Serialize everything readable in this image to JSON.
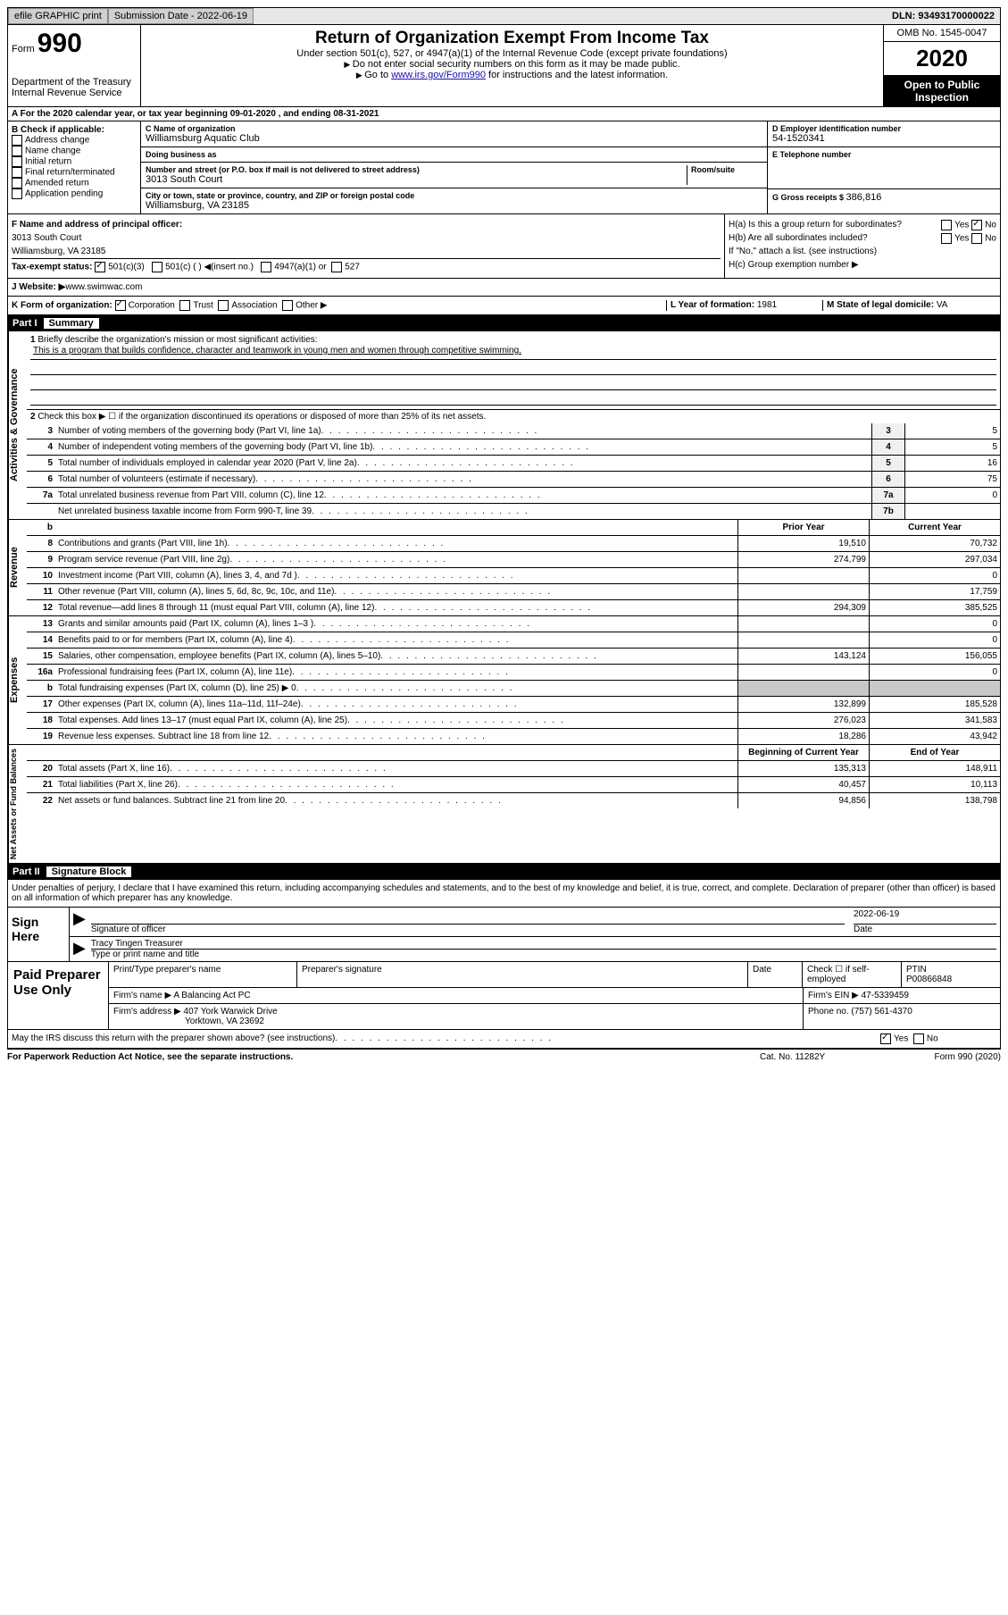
{
  "topbar": {
    "efile": "efile GRAPHIC print",
    "sub_label": "Submission Date - 2022-06-19",
    "dln": "DLN: 93493170000022"
  },
  "header": {
    "form_word": "Form",
    "form_num": "990",
    "dept1": "Department of the Treasury",
    "dept2": "Internal Revenue Service",
    "title": "Return of Organization Exempt From Income Tax",
    "subtitle": "Under section 501(c), 527, or 4947(a)(1) of the Internal Revenue Code (except private foundations)",
    "note1": "Do not enter social security numbers on this form as it may be made public.",
    "note2_pre": "Go to ",
    "note2_link": "www.irs.gov/Form990",
    "note2_post": " for instructions and the latest information.",
    "omb": "OMB No. 1545-0047",
    "year": "2020",
    "open": "Open to Public Inspection"
  },
  "row_a": "A For the 2020 calendar year, or tax year beginning 09-01-2020    , and ending 08-31-2021",
  "col_b": {
    "title": "B Check if applicable:",
    "opts": [
      "Address change",
      "Name change",
      "Initial return",
      "Final return/terminated",
      "Amended return",
      "Application pending"
    ]
  },
  "col_c": {
    "name_label": "C Name of organization",
    "name": "Williamsburg Aquatic Club",
    "dba_label": "Doing business as",
    "dba": "",
    "street_label": "Number and street (or P.O. box if mail is not delivered to street address)",
    "room_label": "Room/suite",
    "street": "3013 South Court",
    "city_label": "City or town, state or province, country, and ZIP or foreign postal code",
    "city": "Williamsburg, VA  23185"
  },
  "col_d": {
    "ein_label": "D Employer identification number",
    "ein": "54-1520341",
    "phone_label": "E Telephone number",
    "phone": "",
    "gross_label": "G Gross receipts $ ",
    "gross": "386,816"
  },
  "fhi": {
    "f_label": "F  Name and address of principal officer:",
    "f_name": "",
    "f_addr1": "3013 South Court",
    "f_addr2": "Williamsburg, VA  23185",
    "i_label": "Tax-exempt status:",
    "i_501c3": "501(c)(3)",
    "i_501c": "501(c) (  ) ◀(insert no.)",
    "i_4947": "4947(a)(1) or",
    "i_527": "527",
    "ha_label": "H(a)  Is this a group return for subordinates?",
    "hb_label": "H(b)  Are all subordinates included?",
    "hb_note": "If \"No,\" attach a list. (see instructions)",
    "hc_label": "H(c)  Group exemption number ▶",
    "yes": "Yes",
    "no": "No"
  },
  "row_j": {
    "label": "J Website: ▶  ",
    "value": "www.swimwac.com"
  },
  "row_k": {
    "l": "K Form of organization:",
    "opts": [
      "Corporation",
      "Trust",
      "Association",
      "Other ▶"
    ],
    "m_label": "L Year of formation: ",
    "m_val": "1981",
    "n_label": "M State of legal domicile: ",
    "n_val": "VA"
  },
  "part1": {
    "num": "Part I",
    "title": "Summary"
  },
  "activities": {
    "vlabel": "Activities & Governance",
    "q1_label": "Briefly describe the organization's mission or most significant activities:",
    "q1_text": "This is a program that builds confidence, character and teamwork in young men and women through competitive swimming.",
    "q2": "Check this box ▶ ☐  if the organization discontinued its operations or disposed of more than 25% of its net assets.",
    "rows": [
      {
        "n": "3",
        "t": "Number of voting members of the governing body (Part VI, line 1a)",
        "box": "3",
        "v": "5"
      },
      {
        "n": "4",
        "t": "Number of independent voting members of the governing body (Part VI, line 1b)",
        "box": "4",
        "v": "5"
      },
      {
        "n": "5",
        "t": "Total number of individuals employed in calendar year 2020 (Part V, line 2a)",
        "box": "5",
        "v": "16"
      },
      {
        "n": "6",
        "t": "Total number of volunteers (estimate if necessary)",
        "box": "6",
        "v": "75"
      },
      {
        "n": "7a",
        "t": "Total unrelated business revenue from Part VIII, column (C), line 12",
        "box": "7a",
        "v": "0"
      },
      {
        "n": "",
        "t": "Net unrelated business taxable income from Form 990-T, line 39",
        "box": "7b",
        "v": ""
      }
    ]
  },
  "revenue": {
    "vlabel": "Revenue",
    "hdr_b": "b",
    "hdr_prior": "Prior Year",
    "hdr_curr": "Current Year",
    "rows": [
      {
        "n": "8",
        "t": "Contributions and grants (Part VIII, line 1h)",
        "p": "19,510",
        "c": "70,732"
      },
      {
        "n": "9",
        "t": "Program service revenue (Part VIII, line 2g)",
        "p": "274,799",
        "c": "297,034"
      },
      {
        "n": "10",
        "t": "Investment income (Part VIII, column (A), lines 3, 4, and 7d )",
        "p": "",
        "c": "0"
      },
      {
        "n": "11",
        "t": "Other revenue (Part VIII, column (A), lines 5, 6d, 8c, 9c, 10c, and 11e)",
        "p": "",
        "c": "17,759"
      },
      {
        "n": "12",
        "t": "Total revenue—add lines 8 through 11 (must equal Part VIII, column (A), line 12)",
        "p": "294,309",
        "c": "385,525"
      }
    ]
  },
  "expenses": {
    "vlabel": "Expenses",
    "rows": [
      {
        "n": "13",
        "t": "Grants and similar amounts paid (Part IX, column (A), lines 1–3 )",
        "p": "",
        "c": "0"
      },
      {
        "n": "14",
        "t": "Benefits paid to or for members (Part IX, column (A), line 4)",
        "p": "",
        "c": "0"
      },
      {
        "n": "15",
        "t": "Salaries, other compensation, employee benefits (Part IX, column (A), lines 5–10)",
        "p": "143,124",
        "c": "156,055"
      },
      {
        "n": "16a",
        "t": "Professional fundraising fees (Part IX, column (A), line 11e)",
        "p": "",
        "c": "0"
      },
      {
        "n": "b",
        "t": "Total fundraising expenses (Part IX, column (D), line 25) ▶ 0",
        "p": "__shade__",
        "c": "__shade__"
      },
      {
        "n": "17",
        "t": "Other expenses (Part IX, column (A), lines 11a–11d, 11f–24e)",
        "p": "132,899",
        "c": "185,528"
      },
      {
        "n": "18",
        "t": "Total expenses. Add lines 13–17 (must equal Part IX, column (A), line 25)",
        "p": "276,023",
        "c": "341,583"
      },
      {
        "n": "19",
        "t": "Revenue less expenses. Subtract line 18 from line 12",
        "p": "18,286",
        "c": "43,942"
      }
    ]
  },
  "netassets": {
    "vlabel": "Net Assets or Fund Balances",
    "hdr_begin": "Beginning of Current Year",
    "hdr_end": "End of Year",
    "rows": [
      {
        "n": "20",
        "t": "Total assets (Part X, line 16)",
        "p": "135,313",
        "c": "148,911"
      },
      {
        "n": "21",
        "t": "Total liabilities (Part X, line 26)",
        "p": "40,457",
        "c": "10,113"
      },
      {
        "n": "22",
        "t": "Net assets or fund balances. Subtract line 21 from line 20",
        "p": "94,856",
        "c": "138,798"
      }
    ]
  },
  "part2": {
    "num": "Part II",
    "title": "Signature Block"
  },
  "sig": {
    "decl": "Under penalties of perjury, I declare that I have examined this return, including accompanying schedules and statements, and to the best of my knowledge and belief, it is true, correct, and complete. Declaration of preparer (other than officer) is based on all information of which preparer has any knowledge.",
    "sign_here": "Sign Here",
    "sig_officer": "Signature of officer",
    "date_label": "Date",
    "date": "2022-06-19",
    "name_title": "Tracy Tingen  Treasurer",
    "type_label": "Type or print name and title"
  },
  "prep": {
    "title": "Paid Preparer Use Only",
    "h_print": "Print/Type preparer's name",
    "h_sig": "Preparer's signature",
    "h_date": "Date",
    "h_check": "Check ☐ if self-employed",
    "h_ptin_l": "PTIN",
    "h_ptin": "P00866848",
    "firm_name_l": "Firm's name   ▶",
    "firm_name": "A Balancing Act PC",
    "firm_ein_l": "Firm's EIN ▶",
    "firm_ein": "47-5339459",
    "firm_addr_l": "Firm's address ▶",
    "firm_addr1": "407 York Warwick Drive",
    "firm_addr2": "Yorktown, VA  23692",
    "phone_l": "Phone no.",
    "phone": "(757) 561-4370"
  },
  "discuss": "May the IRS discuss this return with the preparer shown above? (see instructions)",
  "footer": {
    "l": "For Paperwork Reduction Act Notice, see the separate instructions.",
    "c": "Cat. No. 11282Y",
    "r": "Form 990 (2020)"
  }
}
